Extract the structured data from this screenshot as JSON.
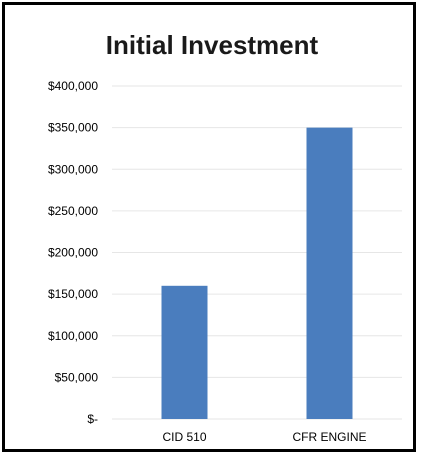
{
  "chart_data": {
    "type": "bar",
    "title": "Initial Investment",
    "xlabel": "",
    "ylabel": "",
    "categories": [
      "CID 510",
      "CFR ENGINE"
    ],
    "values": [
      160000,
      350000
    ],
    "ylim": [
      0,
      400000
    ],
    "yticks": [
      0,
      50000,
      100000,
      150000,
      200000,
      250000,
      300000,
      350000,
      400000
    ],
    "ytick_labels": [
      "$-",
      "$50,000",
      "$100,000",
      "$150,000",
      "$200,000",
      "$250,000",
      "$300,000",
      "$350,000",
      "$400,000"
    ],
    "grid": true,
    "legend": "none",
    "bar_color": "#4a7dbe",
    "grid_color": "#e6e6e6"
  }
}
